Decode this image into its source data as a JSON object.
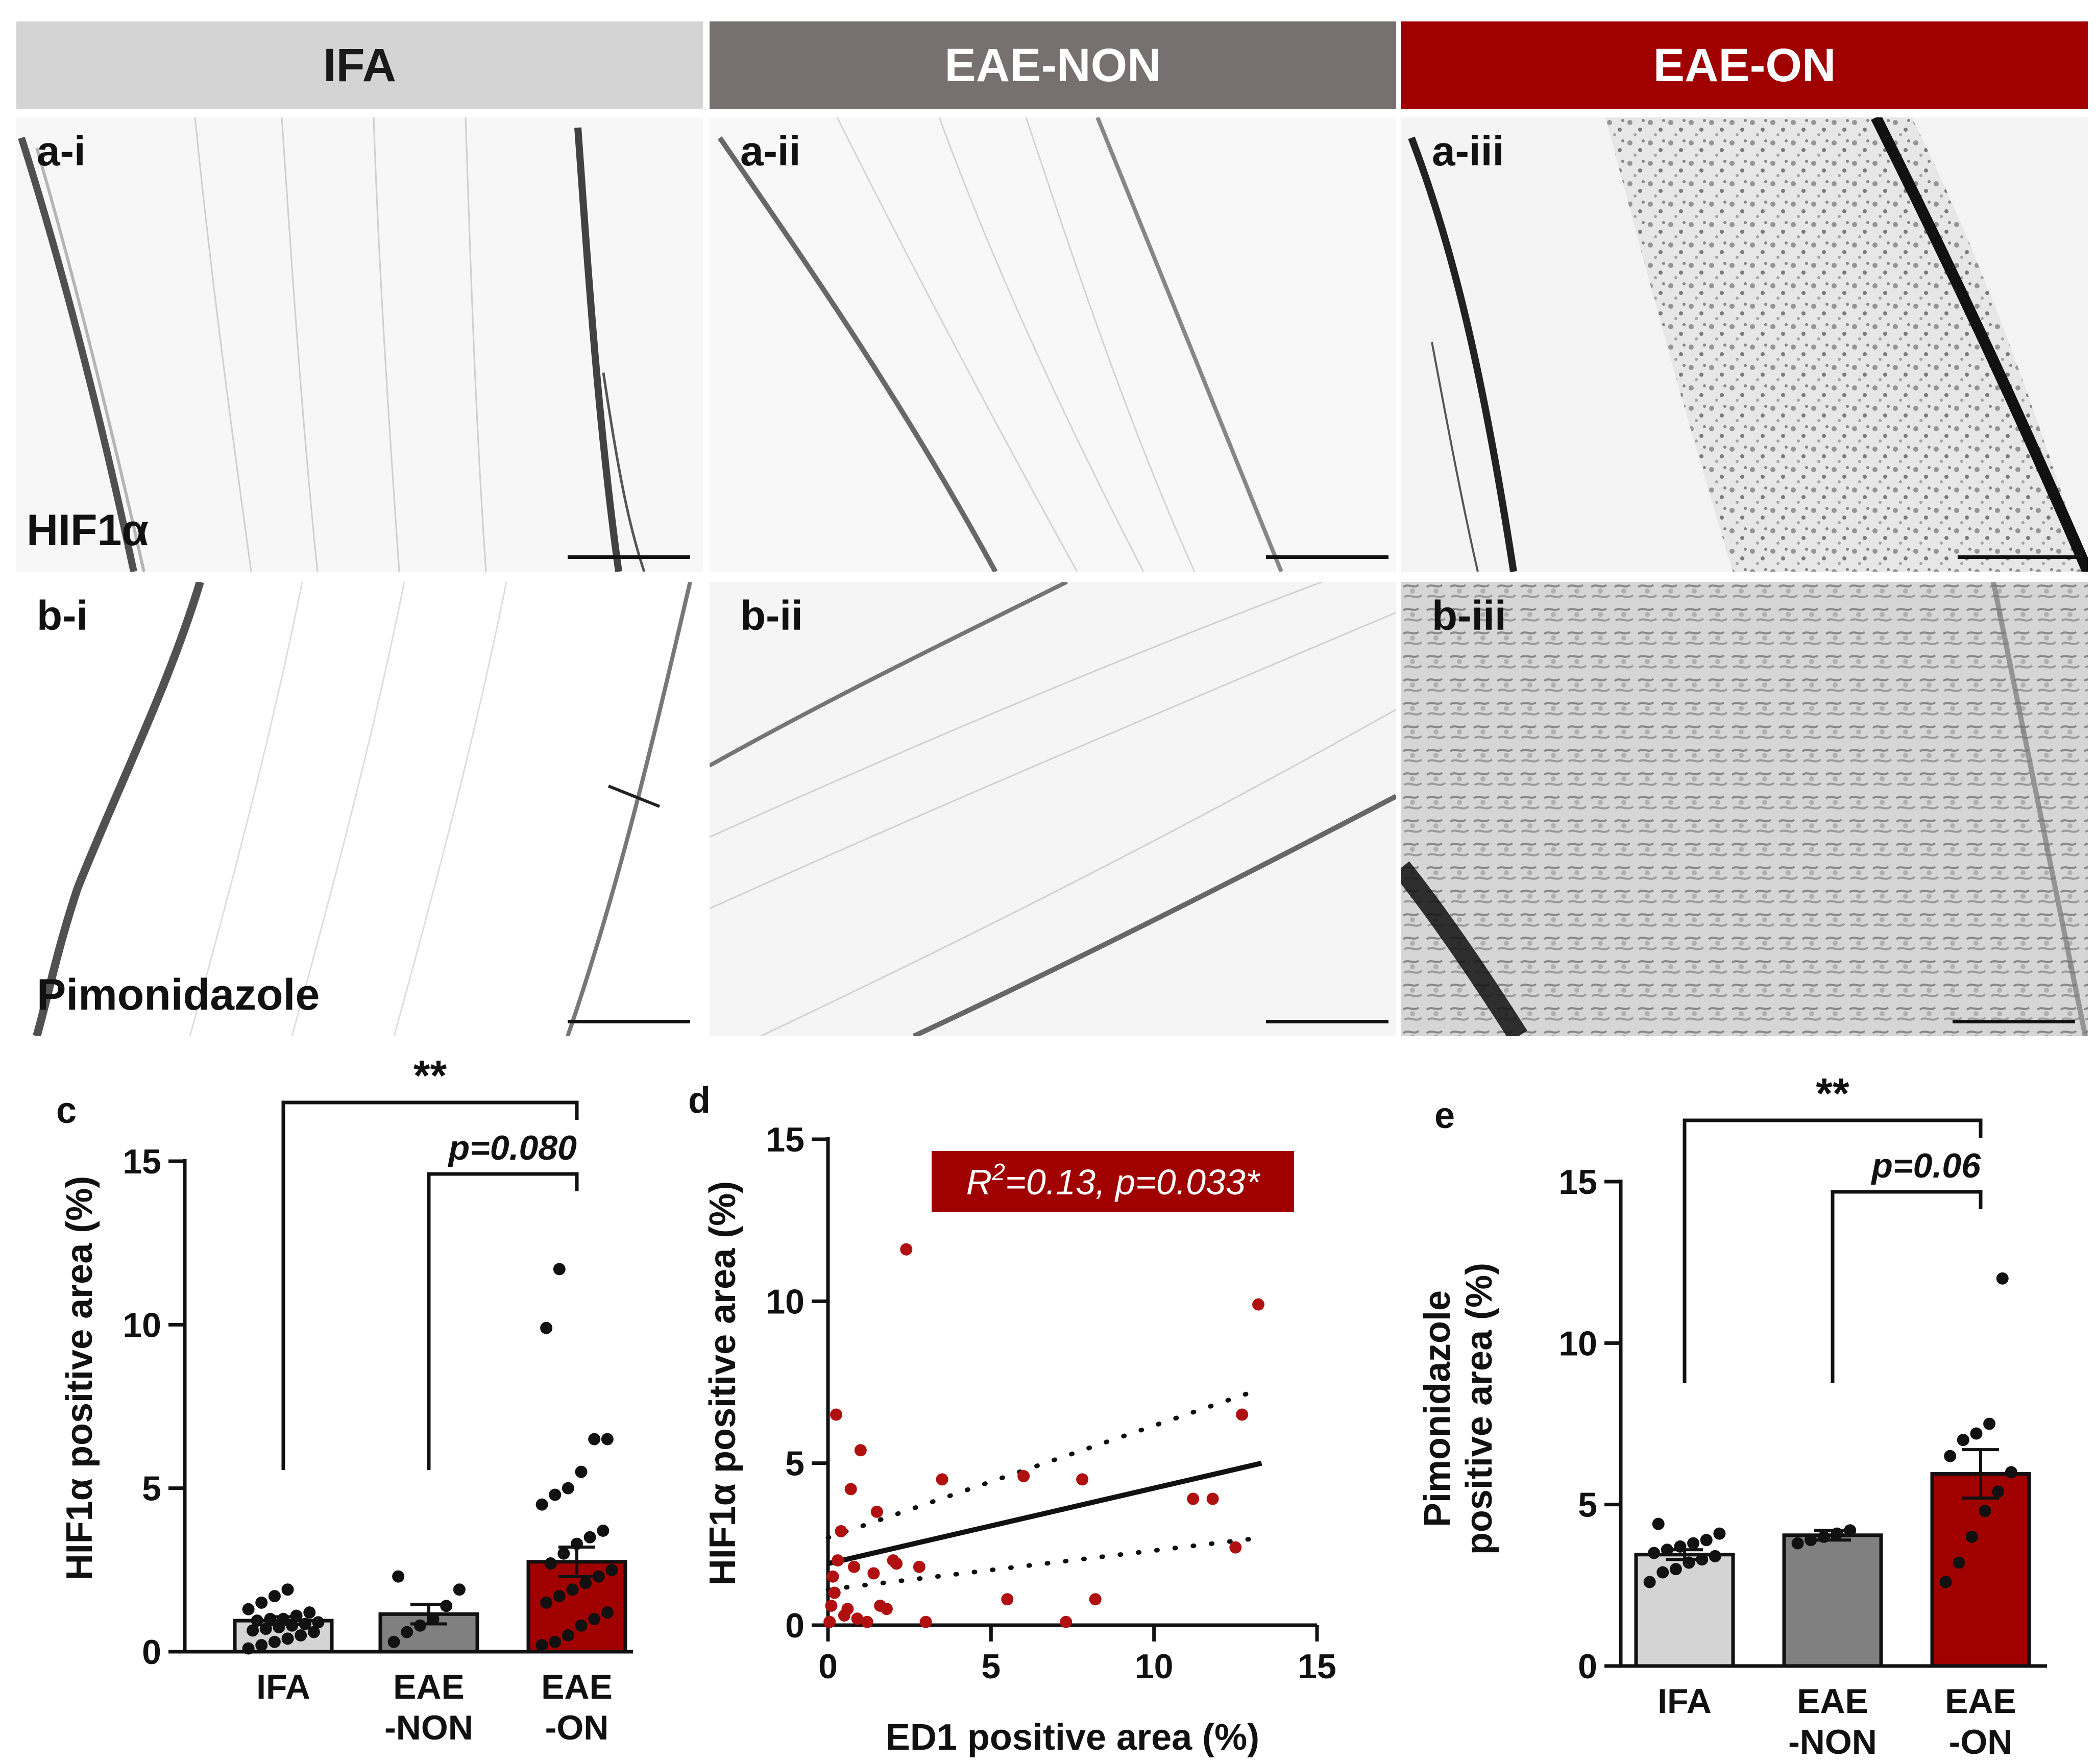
{
  "columns": [
    {
      "label": "IFA",
      "bg": "#d4d4d4",
      "fg": "#1a1a1a"
    },
    {
      "label": "EAE-NON",
      "bg": "#767170",
      "fg": "#ffffff"
    },
    {
      "label": "EAE-ON",
      "bg": "#a10000",
      "fg": "#ffffff"
    }
  ],
  "micrographs": {
    "row_a": {
      "marker": "HIF1α",
      "panels": [
        "a-i",
        "a-ii",
        "a-iii"
      ]
    },
    "row_b": {
      "marker": "Pimonidazole",
      "panels": [
        "b-i",
        "b-ii",
        "b-iii"
      ]
    }
  },
  "colors": {
    "ifa": "#d4d4d4",
    "eae_non": "#808080",
    "eae_on": "#a10000",
    "dot": "#111111",
    "scatter_dot": "#b01010"
  },
  "chart_data": [
    {
      "panel": "c",
      "type": "bar",
      "categories": [
        "IFA",
        "EAE\n-NON",
        "EAE\n-ON"
      ],
      "series": [
        {
          "values": [
            0.95,
            1.15,
            2.75
          ],
          "sem": [
            0.12,
            0.3,
            0.45
          ]
        }
      ],
      "points": [
        [
          0.1,
          0.2,
          0.3,
          0.4,
          0.5,
          0.6,
          0.65,
          0.7,
          0.75,
          0.8,
          0.85,
          0.9,
          0.95,
          1.0,
          1.0,
          1.1,
          1.2,
          1.3,
          1.5,
          1.7,
          1.9
        ],
        [
          0.3,
          0.6,
          0.8,
          1.0,
          1.4,
          1.9,
          2.3
        ],
        [
          0.2,
          0.3,
          0.5,
          0.8,
          1.0,
          1.2,
          1.5,
          1.7,
          1.9,
          2.1,
          2.3,
          2.5,
          2.7,
          3.0,
          3.3,
          3.5,
          3.7,
          4.5,
          4.8,
          5.0,
          5.5,
          6.5,
          6.5,
          9.9,
          11.7
        ]
      ],
      "ylabel": "HIF1α positive area (%)",
      "ylim": [
        0,
        15
      ],
      "yticks": [
        0,
        5,
        10,
        15
      ],
      "annotations": [
        {
          "from": "IFA",
          "to": "EAE\n-ON",
          "text": "**"
        },
        {
          "from": "EAE\n-NON",
          "to": "EAE\n-ON",
          "text": "p=0.080"
        }
      ]
    },
    {
      "panel": "d",
      "type": "scatter",
      "xlabel": "ED1 positive area (%)",
      "ylabel": "HIF1α positive area (%)",
      "xlim": [
        0,
        15
      ],
      "ylim": [
        0,
        15
      ],
      "xticks": [
        0,
        5,
        10,
        15
      ],
      "yticks": [
        0,
        5,
        10,
        15
      ],
      "annotation": "R2=0.13, p=0.033*",
      "annotation_sup": "2",
      "x": [
        0.05,
        0.1,
        0.15,
        0.2,
        0.25,
        0.3,
        0.4,
        0.5,
        0.6,
        0.7,
        0.8,
        0.9,
        1.0,
        1.2,
        1.4,
        1.5,
        1.6,
        1.8,
        2.0,
        2.1,
        2.4,
        2.8,
        3.0,
        3.5,
        5.5,
        6.0,
        7.3,
        7.8,
        8.2,
        11.2,
        11.8,
        12.5,
        12.7,
        13.2
      ],
      "y": [
        0.1,
        0.6,
        1.5,
        1.0,
        6.5,
        2.0,
        2.9,
        0.3,
        0.5,
        4.2,
        1.8,
        0.2,
        5.4,
        0.1,
        1.6,
        3.5,
        0.6,
        0.5,
        2.0,
        1.9,
        11.6,
        1.8,
        0.1,
        4.5,
        0.8,
        4.6,
        0.1,
        4.5,
        0.8,
        3.9,
        3.9,
        2.4,
        6.5,
        9.9
      ],
      "fit": {
        "x": [
          0,
          13.3
        ],
        "y": [
          1.9,
          5.0
        ]
      },
      "ci_upper": {
        "x": [
          0,
          13.3
        ],
        "y": [
          2.7,
          7.3
        ]
      },
      "ci_lower": {
        "x": [
          0,
          13.3
        ],
        "y": [
          1.1,
          2.7
        ]
      }
    },
    {
      "panel": "e",
      "type": "bar",
      "categories": [
        "IFA",
        "EAE\n-NON",
        "EAE\n-ON"
      ],
      "series": [
        {
          "values": [
            3.45,
            4.05,
            5.95
          ],
          "sem": [
            0.15,
            0.15,
            0.75
          ]
        }
      ],
      "points": [
        [
          2.6,
          2.9,
          3.0,
          3.2,
          3.3,
          3.4,
          3.5,
          3.6,
          3.7,
          3.8,
          3.9,
          4.1,
          4.4
        ],
        [
          3.8,
          3.9,
          4.0,
          4.1,
          4.2
        ],
        [
          2.6,
          3.2,
          4.0,
          4.8,
          5.4,
          6.0,
          6.5,
          7.0,
          7.2,
          7.5,
          12.0
        ]
      ],
      "ylabel": "Pimonidazole\npositive area (%)",
      "ylim": [
        0,
        15
      ],
      "yticks": [
        0,
        5,
        10,
        15
      ],
      "annotations": [
        {
          "from": "IFA",
          "to": "EAE\n-ON",
          "text": "**"
        },
        {
          "from": "EAE\n-NON",
          "to": "EAE\n-ON",
          "text": "p=0.06"
        }
      ]
    }
  ]
}
